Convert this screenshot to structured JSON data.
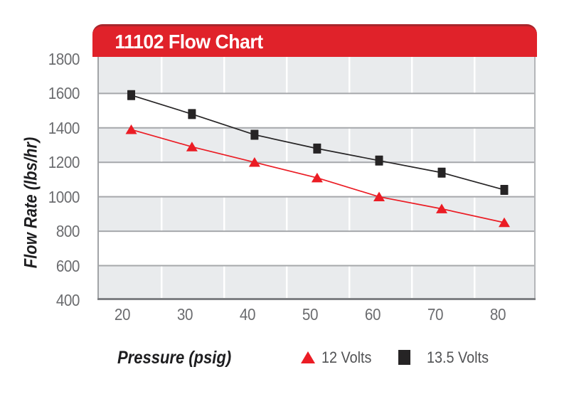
{
  "colors": {
    "banner_red": "#E0222A",
    "banner_top_edge": "#A8262C",
    "title_text": "#ffffff",
    "band_gray": "#e9ebed",
    "grid_horizontal": "#a6a8ab",
    "grid_vertical": "#ffffff",
    "plot_border_left": "#a2a4a7",
    "plot_border_right": "#b4b6b9",
    "axis_line": "#7e8083",
    "tick_text": "#6b6c6f",
    "axis_label_text": "#1e1e20",
    "legend_text": "#515254"
  },
  "chart_data": {
    "type": "line",
    "title": "11102 Flow Chart",
    "xlabel": "Pressure (psig)",
    "ylabel": "Flow Rate (lbs/hr)",
    "x_ticks": [
      20,
      30,
      40,
      50,
      60,
      70,
      80
    ],
    "y_ticks": [
      1800,
      1600,
      1400,
      1200,
      1000,
      800,
      600,
      400
    ],
    "xlim": [
      16,
      86
    ],
    "ylim": [
      400,
      1812
    ],
    "band_step": 200,
    "x_gridline_offset": 6.25,
    "grid": true,
    "legend_position": "bottom",
    "series": [
      {
        "name": "12 Volts",
        "marker": "triangle",
        "color": "#EB1C24",
        "x": [
          21.4,
          31.1,
          41.1,
          51.1,
          61.0,
          71.0,
          81.0
        ],
        "y": [
          1390,
          1290,
          1200,
          1110,
          1000,
          930,
          850
        ]
      },
      {
        "name": "13.5 Volts",
        "marker": "square",
        "color": "#262425",
        "x": [
          21.4,
          31.1,
          41.1,
          51.1,
          61.0,
          71.0,
          81.0
        ],
        "y": [
          1590,
          1480,
          1360,
          1280,
          1210,
          1140,
          1040
        ]
      }
    ]
  }
}
